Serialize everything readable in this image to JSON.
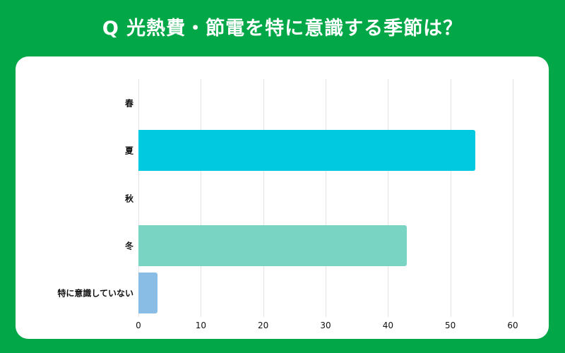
{
  "title": "Q 光熱費・節電を特に意識する季節は？",
  "colors": {
    "background": "#02a847",
    "card": "#ffffff",
    "grid": "#e3e3e6"
  },
  "chart_data": {
    "type": "bar",
    "orientation": "horizontal",
    "title": "Q 光熱費・節電を特に意識する季節は？",
    "categories": [
      "春",
      "夏",
      "秋",
      "冬",
      "特に意識していない"
    ],
    "values": [
      0,
      54,
      0,
      43,
      3
    ],
    "bar_colors": [
      "#00c9e0",
      "#00c9e0",
      "#00c9e0",
      "#7ad4c4",
      "#8abde6"
    ],
    "xlabel": "",
    "ylabel": "",
    "xlim": [
      0,
      60
    ],
    "xticks": [
      "0",
      "10",
      "20",
      "30",
      "40",
      "50",
      "60"
    ],
    "grid": true,
    "legend": false
  }
}
